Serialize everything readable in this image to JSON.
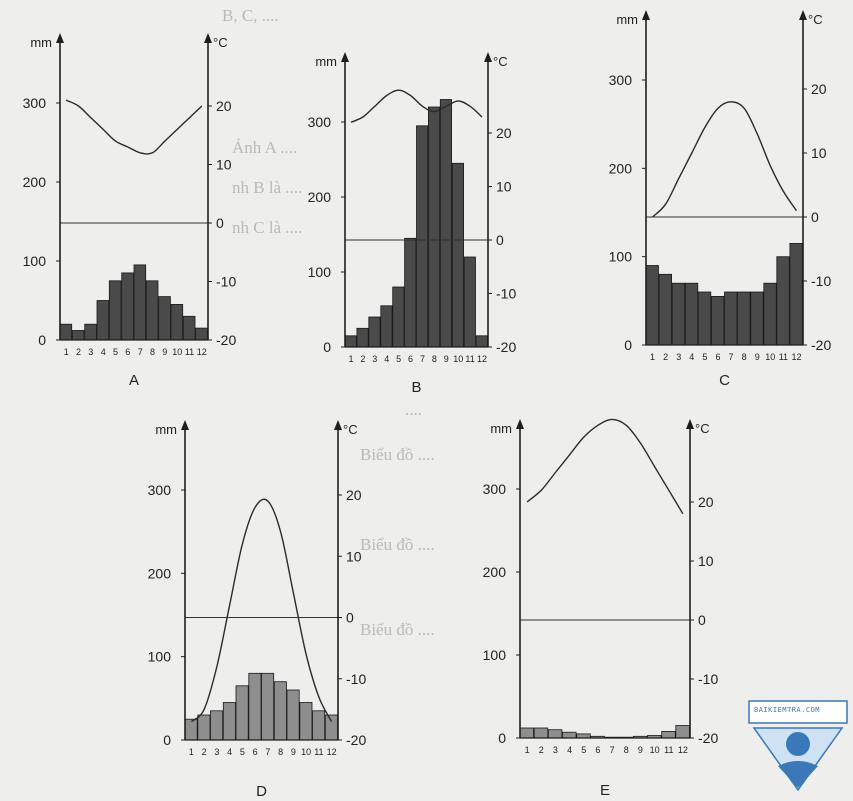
{
  "colors": {
    "axis": "#1e1e1e",
    "bar_dark": "#4a4a4a",
    "bar_light": "#8e8e8e",
    "curve": "#2a2a2a",
    "background": "#eeeeec",
    "logo": "#3a78b8"
  },
  "watermark": {
    "site": "BAIKIEMTRA.COM"
  },
  "chart_data": [
    {
      "type": "bar",
      "title": "A",
      "ylabel_left": "mm",
      "ylabel_right": "°C",
      "left_ticks": [
        "300",
        "200",
        "100",
        "0"
      ],
      "right_ticks": [
        "20",
        "10",
        "0",
        "-10",
        "-20"
      ],
      "ylim_left": [
        0,
        370
      ],
      "ylim_right": [
        -20,
        30
      ],
      "categories": [
        "1",
        "2",
        "3",
        "4",
        "5",
        "6",
        "7",
        "8",
        "9",
        "10",
        "11",
        "12"
      ],
      "precipitation": [
        20,
        12,
        20,
        50,
        75,
        85,
        95,
        75,
        55,
        45,
        30,
        15
      ],
      "temperature": [
        21,
        20,
        18,
        16,
        14,
        13,
        12,
        12,
        14,
        16,
        18,
        20
      ]
    },
    {
      "type": "bar",
      "title": "B",
      "ylabel_left": "mm",
      "ylabel_right": "°C",
      "left_ticks": [
        "300",
        "200",
        "100",
        "0"
      ],
      "right_ticks": [
        "20",
        "10",
        "0",
        "-10",
        "-20"
      ],
      "ylim_left": [
        0,
        370
      ],
      "ylim_right": [
        -20,
        30
      ],
      "categories": [
        "1",
        "2",
        "3",
        "4",
        "5",
        "6",
        "7",
        "8",
        "9",
        "10",
        "11",
        "12"
      ],
      "precipitation": [
        15,
        25,
        40,
        55,
        80,
        145,
        295,
        320,
        330,
        245,
        120,
        15
      ],
      "temperature": [
        22,
        23,
        25,
        27,
        28,
        27,
        25,
        24,
        25,
        26,
        25,
        23
      ]
    },
    {
      "type": "bar",
      "title": "C",
      "ylabel_left": "mm",
      "ylabel_right": "°C",
      "left_ticks": [
        "300",
        "200",
        "100",
        "0"
      ],
      "right_ticks": [
        "20",
        "10",
        "0",
        "-10",
        "-20"
      ],
      "ylim_left": [
        0,
        370
      ],
      "ylim_right": [
        -20,
        30
      ],
      "categories": [
        "1",
        "2",
        "3",
        "4",
        "5",
        "6",
        "7",
        "8",
        "9",
        "10",
        "11",
        "12"
      ],
      "precipitation": [
        90,
        80,
        70,
        70,
        60,
        55,
        60,
        60,
        60,
        70,
        100,
        115
      ],
      "temperature": [
        0,
        2,
        6,
        10,
        14,
        17,
        18,
        17,
        13,
        8,
        4,
        1
      ]
    },
    {
      "type": "bar",
      "title": "D",
      "ylabel_left": "mm",
      "ylabel_right": "°C",
      "left_ticks": [
        "300",
        "200",
        "100",
        "0"
      ],
      "right_ticks": [
        "20",
        "10",
        "0",
        "-10",
        "-20"
      ],
      "ylim_left": [
        0,
        370
      ],
      "ylim_right": [
        -20,
        30
      ],
      "categories": [
        "1",
        "2",
        "3",
        "4",
        "5",
        "6",
        "7",
        "8",
        "9",
        "10",
        "11",
        "12"
      ],
      "precipitation": [
        25,
        30,
        35,
        45,
        65,
        80,
        80,
        70,
        60,
        45,
        35,
        30
      ],
      "temperature": [
        -17,
        -15,
        -8,
        2,
        12,
        18,
        19,
        14,
        4,
        -6,
        -13,
        -17
      ]
    },
    {
      "type": "bar",
      "title": "E",
      "ylabel_left": "mm",
      "ylabel_right": "°C",
      "left_ticks": [
        "300",
        "200",
        "100",
        "0"
      ],
      "right_ticks": [
        "20",
        "10",
        "0",
        "-10",
        "-20"
      ],
      "ylim_left": [
        0,
        370
      ],
      "ylim_right": [
        -20,
        30
      ],
      "categories": [
        "1",
        "2",
        "3",
        "4",
        "5",
        "6",
        "7",
        "8",
        "9",
        "10",
        "11",
        "12"
      ],
      "precipitation": [
        12,
        12,
        10,
        7,
        5,
        2,
        1,
        1,
        2,
        3,
        8,
        15
      ],
      "temperature": [
        20,
        22,
        25,
        28,
        31,
        33,
        34,
        33,
        30,
        26,
        22,
        18
      ]
    }
  ]
}
